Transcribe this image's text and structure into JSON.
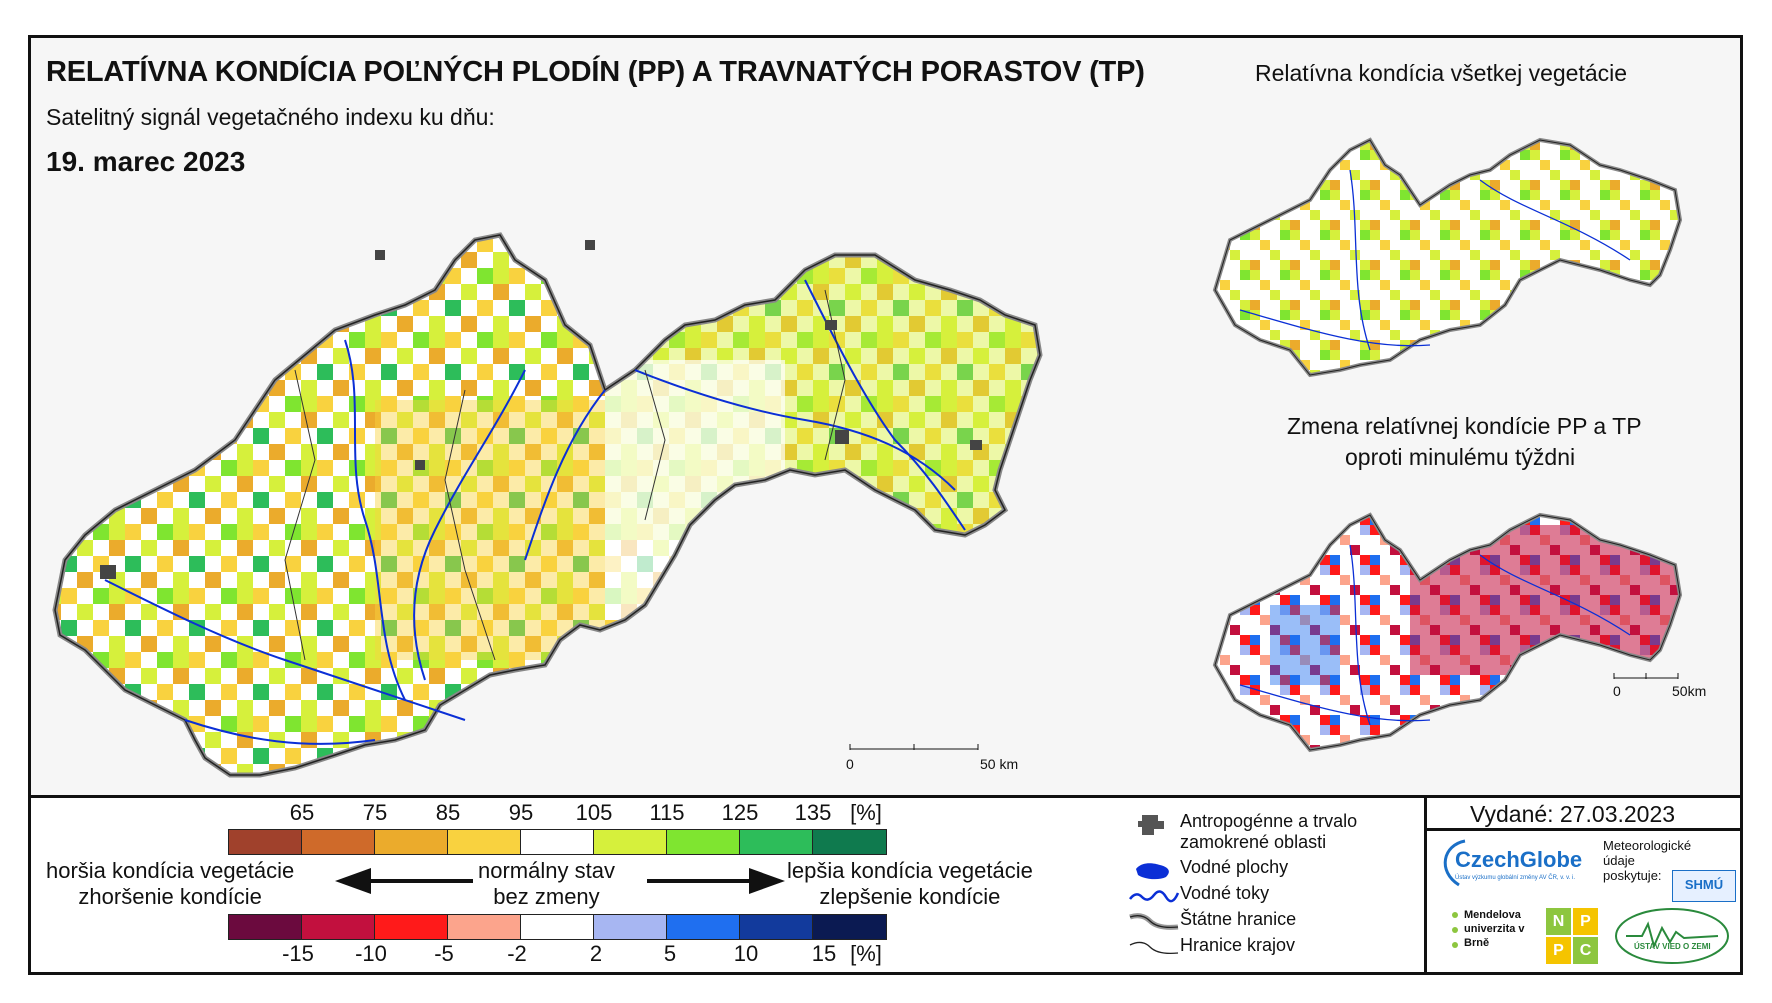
{
  "header": {
    "title": "RELATÍVNA KONDÍCIA POĽNÝCH PLODÍN (PP) A TRAVNATÝCH PORASTOV (TP)",
    "subtitle": "Satelitný signál vegetačného indexu ku dňu:",
    "date": "19. marec 2023"
  },
  "inset_all": {
    "title": "Relatívna kondícia všetkej vegetácie"
  },
  "inset_change": {
    "title_line1": "Zmena relatívnej kondície PP a TP",
    "title_line2": "oproti minulému týždni",
    "scale_start": "0",
    "scale_end": "50km"
  },
  "main_map": {
    "scale_start": "0",
    "scale_end": "50 km"
  },
  "condition_scale": {
    "ticks": [
      "65",
      "75",
      "85",
      "95",
      "105",
      "115",
      "125",
      "135",
      "[%]"
    ],
    "colors": [
      "#a0412c",
      "#cf6a2a",
      "#ebab2c",
      "#f9d23f",
      "#ffffff",
      "#d6f03c",
      "#7fe530",
      "#2dbd5a",
      "#0f7a4e"
    ]
  },
  "change_scale": {
    "ticks": [
      "-15",
      "-10",
      "-5",
      "-2",
      "2",
      "5",
      "10",
      "15",
      "[%]"
    ],
    "colors": [
      "#6b0a3e",
      "#c2103e",
      "#ff1a1a",
      "#fca48c",
      "#ffffff",
      "#a7b6f2",
      "#1f6ff0",
      "#123a9c",
      "#0b1a52"
    ]
  },
  "legend_text": {
    "worse_line1": "horšia kondícia vegetácie",
    "worse_line2": "zhoršenie kondície",
    "normal_line1": "normálny stav",
    "normal_line2": "bez zmeny",
    "better_line1": "lepšia kondícia vegetácie",
    "better_line2": "zlepšenie kondície"
  },
  "map_legend": [
    {
      "icon": "urban-area-icon",
      "label": "Antropogénne a trvalo zamokrené oblasti"
    },
    {
      "icon": "water-body-icon",
      "label": "Vodné plochy"
    },
    {
      "icon": "river-icon",
      "label": "Vodné toky"
    },
    {
      "icon": "state-border-icon",
      "label": "Štátne hranice"
    },
    {
      "icon": "region-border-icon",
      "label": "Hranice krajov"
    }
  ],
  "issued": "Vydané: 27.03.2023",
  "logos": {
    "czechglobe": "CzechGlobe",
    "czechglobe_sub": "Ústav výzkumu globální změny AV ČR, v. v. i.",
    "shmu_label": "Meteorologické údaje poskytuje:",
    "shmu": "SHMÚ",
    "mendel": "Mendelova univerzita v Brně",
    "nppc": [
      "N",
      "P",
      "P",
      "C"
    ],
    "uvz": "ÚSTAV VIED O ZEMI"
  }
}
